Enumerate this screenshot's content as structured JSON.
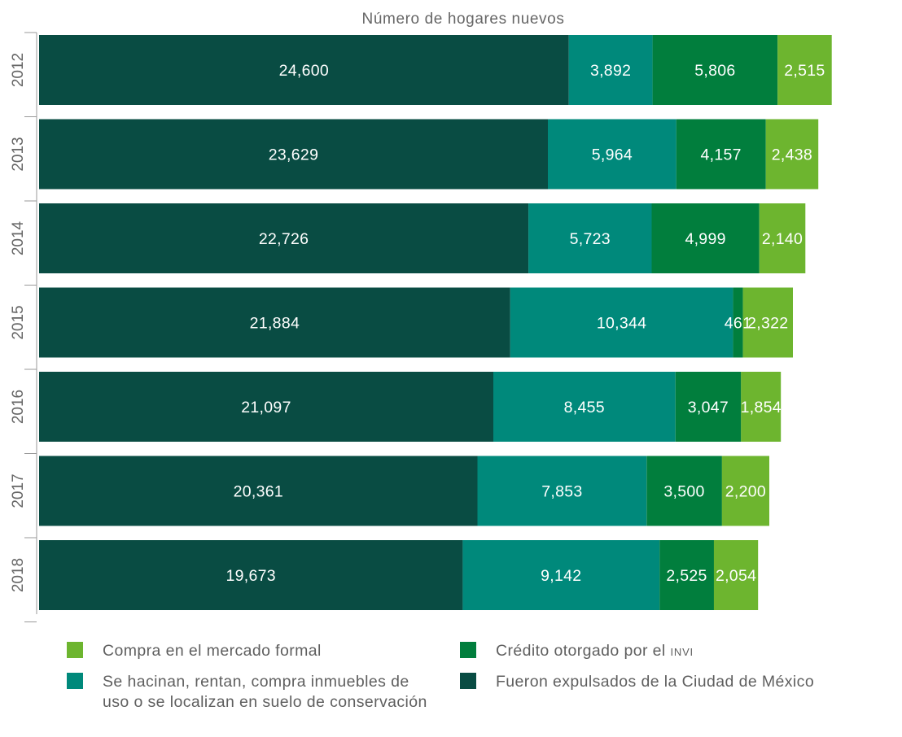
{
  "chart_data": {
    "type": "bar",
    "orientation": "horizontal",
    "stacked": true,
    "title": "Número de hogares nuevos",
    "categories": [
      "2012",
      "2013",
      "2014",
      "2015",
      "2016",
      "2017",
      "2018"
    ],
    "series": [
      {
        "name": "Fueron expulsados de la Ciudad de México",
        "color": "#094c43",
        "values": [
          24600,
          23629,
          22726,
          21884,
          21097,
          20361,
          19673
        ],
        "labels": [
          "24,600",
          "23,629",
          "22,726",
          "21,884",
          "21,097",
          "20,361",
          "19,673"
        ]
      },
      {
        "name": "Se hacinan, rentan, compra inmuebles de uso o se localizan en suelo de conservación",
        "color": "#00897b",
        "values": [
          3892,
          5964,
          5723,
          10344,
          8455,
          7853,
          9142
        ],
        "labels": [
          "3,892",
          "5,964",
          "5,723",
          "10,344",
          "8,455",
          "7,853",
          "9,142"
        ]
      },
      {
        "name": "Crédito otorgado por el",
        "name_suffix": "INVI",
        "color": "#017e3d",
        "values": [
          5806,
          4157,
          4999,
          461,
          3047,
          3500,
          2525
        ],
        "labels": [
          "5,806",
          "4,157",
          "4,999",
          "461",
          "3,047",
          "3,500",
          "2,525"
        ]
      },
      {
        "name": "Compra en el mercado formal",
        "color": "#6db52f",
        "values": [
          2515,
          2438,
          2140,
          2322,
          1854,
          2200,
          2054
        ],
        "labels": [
          "2,515",
          "2,438",
          "2,140",
          "2,322",
          "1,854",
          "2,200",
          "2,054"
        ]
      }
    ],
    "grid": false,
    "legend_position": "bottom",
    "legend": {
      "items": [
        {
          "label": "Compra en el mercado formal",
          "color": "#6db52f"
        },
        {
          "label": "Crédito otorgado por el",
          "suffix": "INVI",
          "color": "#017e3d"
        },
        {
          "label": "Se hacinan, rentan, compra inmuebles de uso o se localizan en suelo de conservación",
          "color": "#00897b"
        },
        {
          "label": "Fueron expulsados de la Ciudad de México",
          "color": "#094c43"
        }
      ]
    }
  }
}
